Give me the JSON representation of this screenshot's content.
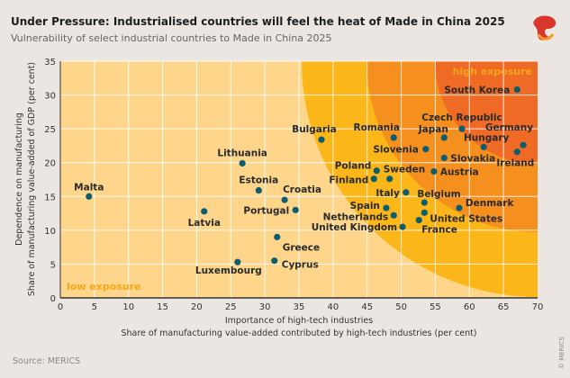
{
  "header": {
    "title": "Under Pressure: Industrialised countries will feel the heat of Made in China 2025",
    "subtitle": "Vulnerability of select industrial countries to Made in China 2025"
  },
  "footer": {
    "source": "Source: MERICS",
    "copyright": "© MERICS"
  },
  "logo": {
    "name": "merics-logo-icon"
  },
  "colors": {
    "low_zone": "#fdd68c",
    "mid_zone": "#fbb619",
    "high_zone": "#f5901f",
    "top_zone": "#ef6a24",
    "point": "#0e5d6f",
    "zone_label": "#f7a51b",
    "background": "#ebe6e1"
  },
  "chart_data": {
    "type": "scatter",
    "title": "Under Pressure: Industrialised countries will feel the heat of Made in China 2025",
    "subtitle": "Vulnerability of select industrial countries to Made in China 2025",
    "xlabel": "Importance of high-tech industries",
    "xlabel2": "Share of manufacturing value-added contributed by high-tech industries (per cent)",
    "ylabel": "Dependence on manufacturing",
    "ylabel2": "Share of manufacturing value-added of GDP (per cent)",
    "xlim": [
      0,
      70
    ],
    "ylim": [
      0,
      35
    ],
    "xticks": [
      0,
      5,
      10,
      15,
      20,
      25,
      30,
      35,
      40,
      45,
      50,
      55,
      60,
      65,
      70
    ],
    "yticks": [
      0,
      5,
      10,
      15,
      20,
      25,
      30,
      35
    ],
    "grid": true,
    "annotations": {
      "low": "low exposure",
      "high": "high exposure"
    },
    "points": [
      {
        "name": "Malta",
        "x": 4.2,
        "y": 15.0
      },
      {
        "name": "Latvia",
        "x": 21.1,
        "y": 12.8
      },
      {
        "name": "Lithuania",
        "x": 26.7,
        "y": 19.9
      },
      {
        "name": "Estonia",
        "x": 29.1,
        "y": 15.9
      },
      {
        "name": "Croatia",
        "x": 32.9,
        "y": 14.5
      },
      {
        "name": "Portugal",
        "x": 34.5,
        "y": 13.0
      },
      {
        "name": "Greece",
        "x": 31.8,
        "y": 9.0
      },
      {
        "name": "Luxembourg",
        "x": 26.0,
        "y": 5.3
      },
      {
        "name": "Cyprus",
        "x": 31.4,
        "y": 5.5
      },
      {
        "name": "Bulgaria",
        "x": 38.3,
        "y": 23.4
      },
      {
        "name": "Romania",
        "x": 48.9,
        "y": 23.7
      },
      {
        "name": "Slovenia",
        "x": 53.6,
        "y": 22.0
      },
      {
        "name": "Japan",
        "x": 56.3,
        "y": 23.7
      },
      {
        "name": "Czech Republic",
        "x": 58.9,
        "y": 25.0
      },
      {
        "name": "Hungary",
        "x": 62.1,
        "y": 22.3
      },
      {
        "name": "Germany",
        "x": 67.9,
        "y": 22.6
      },
      {
        "name": "Ireland",
        "x": 67.0,
        "y": 21.6
      },
      {
        "name": "South Korea",
        "x": 67.0,
        "y": 30.8
      },
      {
        "name": "Slovakia",
        "x": 56.3,
        "y": 20.7
      },
      {
        "name": "Austria",
        "x": 54.8,
        "y": 18.7
      },
      {
        "name": "Poland",
        "x": 46.4,
        "y": 18.8
      },
      {
        "name": "Finland",
        "x": 46.0,
        "y": 17.6
      },
      {
        "name": "Sweden",
        "x": 48.3,
        "y": 17.6
      },
      {
        "name": "Italy",
        "x": 50.7,
        "y": 15.6
      },
      {
        "name": "Belgium",
        "x": 53.4,
        "y": 14.1
      },
      {
        "name": "Spain",
        "x": 47.8,
        "y": 13.3
      },
      {
        "name": "Netherlands",
        "x": 48.9,
        "y": 12.2
      },
      {
        "name": "United States",
        "x": 53.4,
        "y": 12.6
      },
      {
        "name": "France",
        "x": 52.6,
        "y": 11.5
      },
      {
        "name": "United Kingdom",
        "x": 50.2,
        "y": 10.5
      },
      {
        "name": "Denmark",
        "x": 58.5,
        "y": 13.3
      }
    ]
  }
}
